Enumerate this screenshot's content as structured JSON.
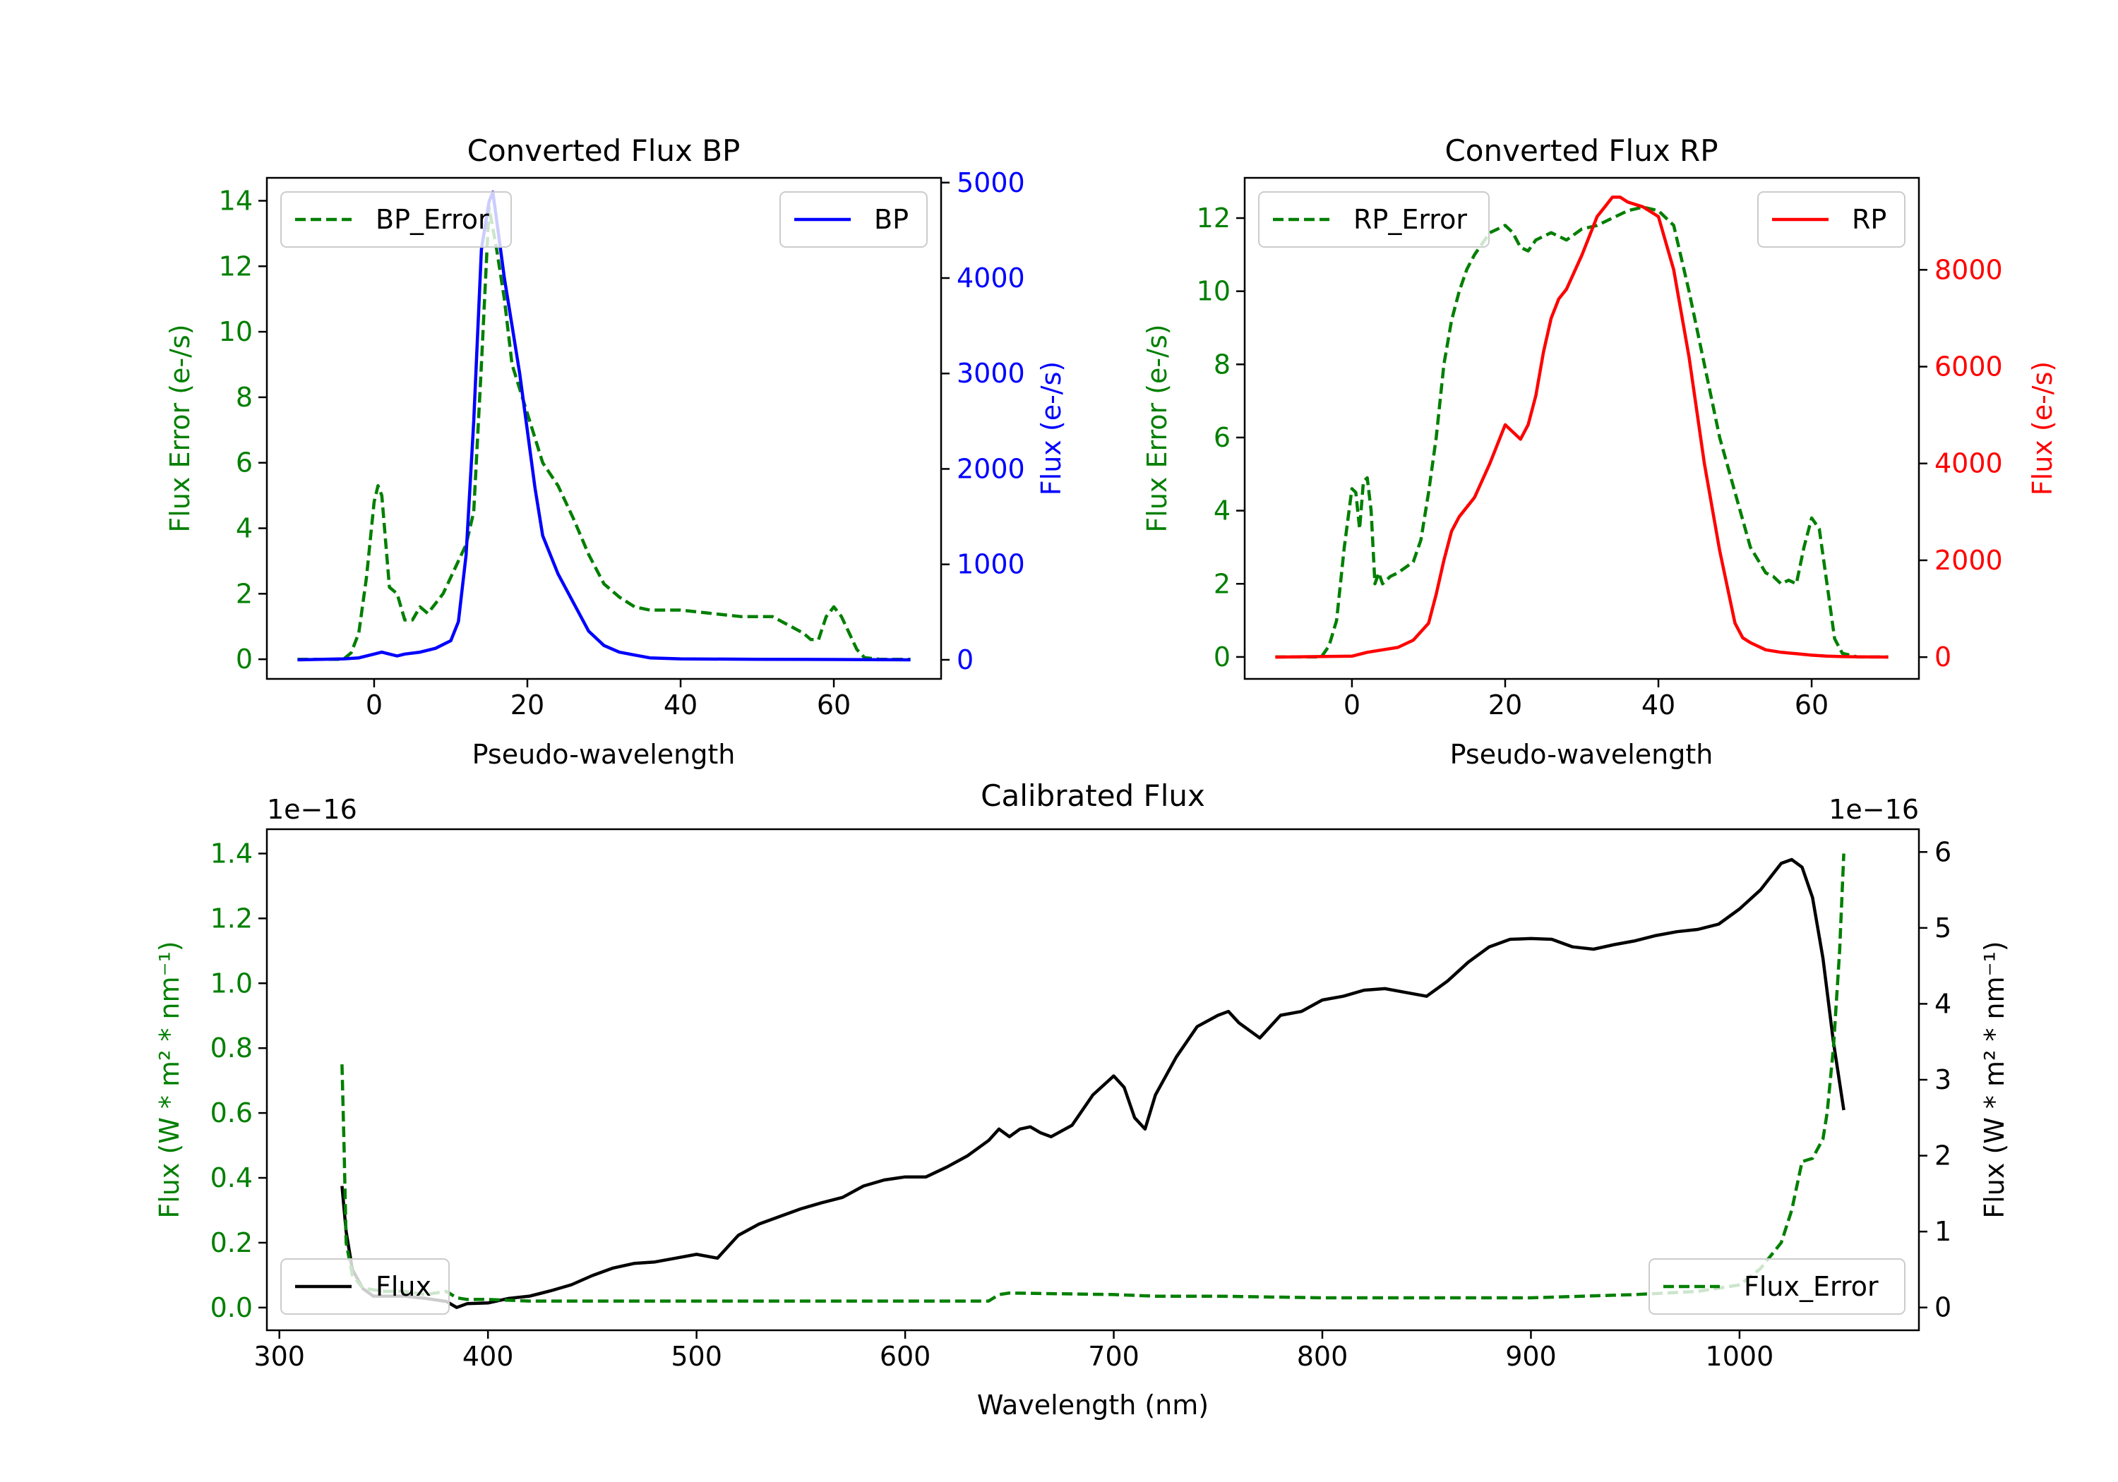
{
  "colors": {
    "green": "#007f00",
    "blue": "#0000ff",
    "red": "#ff0000",
    "black": "#000000"
  },
  "chart_data": [
    {
      "type": "line",
      "title": "Converted Flux BP",
      "xlabel": "Pseudo-wavelength",
      "ylabel_left": "Flux Error (e-/s)",
      "ylabel_right": "Flux (e-/s)",
      "xlim": [
        -14,
        74
      ],
      "ylim_left": [
        -0.6,
        14.7
      ],
      "ylim_right": [
        -200,
        5050
      ],
      "xticks": [
        0,
        20,
        40,
        60
      ],
      "yticks_left": [
        0,
        2,
        4,
        6,
        8,
        10,
        12,
        14
      ],
      "yticks_right": [
        0,
        1000,
        2000,
        3000,
        4000,
        5000
      ],
      "series": [
        {
          "name": "BP_Error",
          "axis": "left",
          "color": "#007f00",
          "style": "dashed",
          "legend": "top-left",
          "x": [
            -10,
            -4,
            -3,
            -2,
            -1,
            0,
            0.5,
            1,
            2,
            3,
            4,
            5,
            6,
            7,
            8,
            9,
            10,
            11,
            12,
            13,
            14,
            15,
            16,
            17,
            18,
            20,
            22,
            24,
            26,
            28,
            30,
            32,
            34,
            36,
            38,
            40,
            44,
            48,
            52,
            56,
            57,
            58,
            59,
            60,
            61,
            62,
            63,
            64,
            66,
            70
          ],
          "y": [
            0.0,
            0.0,
            0.2,
            0.8,
            2.5,
            4.8,
            5.3,
            5.0,
            2.2,
            2.0,
            1.2,
            1.2,
            1.6,
            1.4,
            1.7,
            2.0,
            2.5,
            3.0,
            3.5,
            4.5,
            9.0,
            13.8,
            12.5,
            11.0,
            9.0,
            7.5,
            6.0,
            5.3,
            4.3,
            3.2,
            2.3,
            1.9,
            1.6,
            1.5,
            1.5,
            1.5,
            1.4,
            1.3,
            1.3,
            0.8,
            0.6,
            0.6,
            1.3,
            1.6,
            1.3,
            0.8,
            0.3,
            0.05,
            0.0,
            0.0
          ]
        },
        {
          "name": "BP",
          "axis": "right",
          "color": "#0000ff",
          "style": "solid",
          "legend": "top-right",
          "x": [
            -10,
            -4,
            -2,
            0,
            1,
            2,
            3,
            4,
            6,
            8,
            10,
            11,
            12,
            13,
            14,
            15,
            15.5,
            16,
            17,
            18,
            19,
            20,
            21,
            22,
            24,
            26,
            28,
            30,
            32,
            34,
            36,
            40,
            50,
            60,
            65,
            70
          ],
          "y": [
            0,
            10,
            20,
            60,
            80,
            60,
            40,
            60,
            80,
            120,
            200,
            400,
            1100,
            2500,
            4300,
            4800,
            4900,
            4600,
            4000,
            3500,
            3000,
            2400,
            1800,
            1300,
            900,
            600,
            300,
            150,
            80,
            50,
            20,
            10,
            5,
            3,
            2,
            0
          ]
        }
      ]
    },
    {
      "type": "line",
      "title": "Converted Flux RP",
      "xlabel": "Pseudo-wavelength",
      "ylabel_left": "Flux Error (e-/s)",
      "ylabel_right": "Flux (e-/s)",
      "xlim": [
        -14,
        74
      ],
      "ylim_left": [
        -0.6,
        13.1
      ],
      "ylim_right": [
        -450,
        9900
      ],
      "xticks": [
        0,
        20,
        40,
        60
      ],
      "yticks_left": [
        0,
        2,
        4,
        6,
        8,
        10,
        12
      ],
      "yticks_right": [
        0,
        2000,
        4000,
        6000,
        8000
      ],
      "series": [
        {
          "name": "RP_Error",
          "axis": "left",
          "color": "#007f00",
          "style": "dashed",
          "legend": "top-left",
          "x": [
            -10,
            -4,
            -3,
            -2,
            -1,
            0,
            0.5,
            1,
            1.5,
            2,
            2.5,
            3,
            3.5,
            4,
            5,
            6,
            8,
            9,
            10,
            11,
            12,
            13,
            14,
            15,
            16,
            17,
            18,
            19,
            20,
            21,
            22,
            23,
            24,
            26,
            28,
            30,
            32,
            34,
            36,
            38,
            40,
            42,
            44,
            46,
            48,
            50,
            52,
            54,
            55,
            56,
            57,
            58,
            59,
            60,
            61,
            62,
            63,
            64,
            66,
            70
          ],
          "y": [
            0.0,
            0.0,
            0.3,
            1.0,
            3.0,
            4.6,
            4.5,
            3.5,
            4.8,
            4.9,
            4.0,
            2.0,
            2.3,
            2.0,
            2.2,
            2.3,
            2.6,
            3.2,
            4.5,
            6.0,
            8.0,
            9.2,
            10.0,
            10.6,
            11.0,
            11.3,
            11.6,
            11.7,
            11.8,
            11.6,
            11.2,
            11.1,
            11.4,
            11.6,
            11.4,
            11.7,
            11.8,
            12.0,
            12.2,
            12.3,
            12.2,
            11.8,
            10.0,
            8.0,
            6.0,
            4.5,
            3.0,
            2.3,
            2.2,
            2.0,
            2.1,
            2.0,
            3.0,
            3.8,
            3.5,
            2.0,
            0.5,
            0.1,
            0.0,
            0.0
          ]
        },
        {
          "name": "RP",
          "axis": "right",
          "color": "#ff0000",
          "style": "solid",
          "legend": "top-right",
          "x": [
            -10,
            0,
            2,
            4,
            6,
            8,
            10,
            11,
            12,
            13,
            14,
            16,
            18,
            20,
            22,
            23,
            24,
            25,
            26,
            27,
            28,
            30,
            31,
            32,
            33,
            34,
            35,
            36,
            38,
            40,
            42,
            44,
            46,
            48,
            50,
            51,
            52,
            54,
            56,
            58,
            60,
            62,
            64,
            66,
            70
          ],
          "y": [
            0,
            20,
            100,
            150,
            200,
            350,
            700,
            1300,
            2000,
            2600,
            2900,
            3300,
            4000,
            4800,
            4500,
            4800,
            5400,
            6300,
            7000,
            7400,
            7600,
            8300,
            8700,
            9100,
            9300,
            9500,
            9500,
            9400,
            9300,
            9100,
            8000,
            6200,
            4000,
            2200,
            700,
            400,
            300,
            150,
            100,
            70,
            40,
            20,
            10,
            5,
            0
          ]
        }
      ]
    },
    {
      "type": "line",
      "title": "Calibrated Flux",
      "xlabel": "Wavelength (nm)",
      "ylabel_left": "Flux (W * m² * nm⁻¹)",
      "ylabel_right": "Flux (W * m² * nm⁻¹)",
      "offset_left": "1e−16",
      "offset_right": "1e−16",
      "xlim": [
        294,
        1086
      ],
      "ylim_left": [
        -0.07,
        1.475
      ],
      "ylim_right": [
        -0.3,
        6.3
      ],
      "xticks": [
        300,
        400,
        500,
        600,
        700,
        800,
        900,
        1000
      ],
      "yticks_left": [
        0.0,
        0.2,
        0.4,
        0.6,
        0.8,
        1.0,
        1.2,
        1.4
      ],
      "yticks_right": [
        0,
        1,
        2,
        3,
        4,
        5,
        6
      ],
      "series": [
        {
          "name": "Flux",
          "axis": "right",
          "color": "#000000",
          "style": "solid",
          "legend": "bottom-left",
          "x": [
            330,
            332,
            335,
            340,
            345,
            350,
            360,
            370,
            380,
            385,
            390,
            400,
            410,
            420,
            430,
            440,
            450,
            460,
            470,
            480,
            490,
            500,
            510,
            520,
            530,
            540,
            550,
            560,
            570,
            580,
            590,
            600,
            610,
            620,
            630,
            640,
            645,
            650,
            655,
            660,
            665,
            670,
            680,
            690,
            700,
            705,
            710,
            715,
            720,
            730,
            740,
            750,
            755,
            760,
            770,
            780,
            790,
            800,
            810,
            820,
            830,
            840,
            850,
            860,
            870,
            880,
            890,
            900,
            910,
            920,
            930,
            940,
            950,
            960,
            970,
            980,
            990,
            1000,
            1010,
            1020,
            1025,
            1030,
            1035,
            1040,
            1045,
            1050
          ],
          "y": [
            1.6,
            1.0,
            0.5,
            0.25,
            0.15,
            0.15,
            0.15,
            0.12,
            0.08,
            0.0,
            0.05,
            0.06,
            0.12,
            0.15,
            0.22,
            0.3,
            0.42,
            0.52,
            0.58,
            0.6,
            0.65,
            0.7,
            0.65,
            0.95,
            1.1,
            1.2,
            1.3,
            1.38,
            1.45,
            1.6,
            1.68,
            1.72,
            1.72,
            1.85,
            2.0,
            2.2,
            2.35,
            2.25,
            2.35,
            2.38,
            2.3,
            2.25,
            2.4,
            2.8,
            3.05,
            2.9,
            2.5,
            2.35,
            2.8,
            3.3,
            3.7,
            3.85,
            3.9,
            3.75,
            3.55,
            3.85,
            3.9,
            4.05,
            4.1,
            4.18,
            4.2,
            4.15,
            4.1,
            4.3,
            4.55,
            4.75,
            4.85,
            4.86,
            4.85,
            4.75,
            4.72,
            4.78,
            4.83,
            4.9,
            4.95,
            4.98,
            5.05,
            5.25,
            5.5,
            5.85,
            5.9,
            5.8,
            5.4,
            4.6,
            3.5,
            2.6
          ]
        },
        {
          "name": "Flux_Error",
          "axis": "left",
          "color": "#007f00",
          "style": "dashed",
          "legend": "bottom-right",
          "x": [
            330,
            331,
            332,
            335,
            340,
            350,
            360,
            370,
            380,
            385,
            390,
            400,
            420,
            440,
            460,
            500,
            550,
            600,
            620,
            640,
            645,
            650,
            700,
            720,
            750,
            800,
            850,
            900,
            950,
            980,
            1000,
            1010,
            1020,
            1025,
            1030,
            1035,
            1040,
            1042,
            1045,
            1048,
            1050
          ],
          "y": [
            0.75,
            0.5,
            0.2,
            0.1,
            0.06,
            0.05,
            0.05,
            0.04,
            0.05,
            0.03,
            0.025,
            0.025,
            0.02,
            0.02,
            0.02,
            0.02,
            0.02,
            0.02,
            0.02,
            0.02,
            0.04,
            0.045,
            0.04,
            0.035,
            0.035,
            0.03,
            0.03,
            0.03,
            0.04,
            0.05,
            0.07,
            0.12,
            0.2,
            0.3,
            0.45,
            0.46,
            0.52,
            0.6,
            0.8,
            1.1,
            1.4
          ]
        }
      ]
    }
  ]
}
